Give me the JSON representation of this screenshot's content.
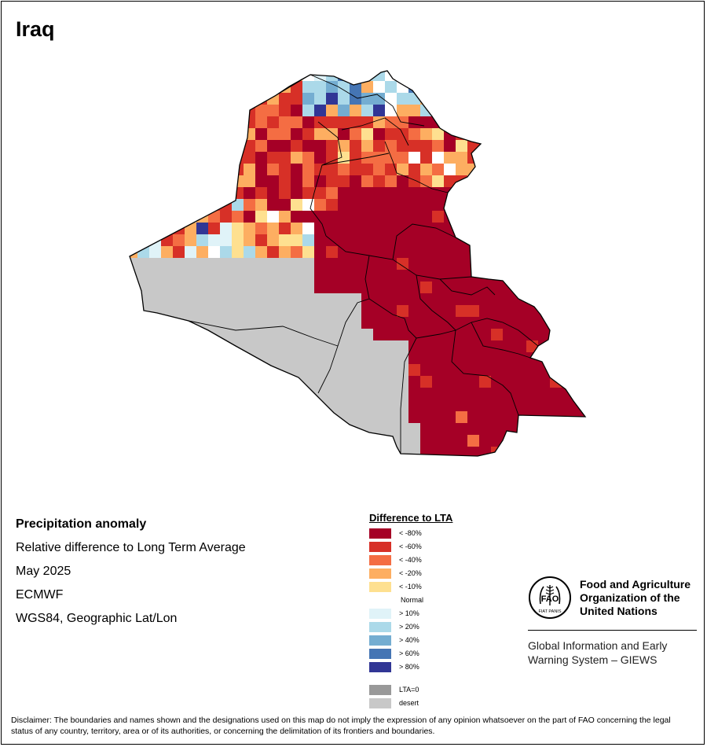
{
  "title": "Iraq",
  "metadata": {
    "heading": "Precipitation anomaly",
    "description": "Relative difference to Long Term Average",
    "period": "May 2025",
    "source": "ECMWF",
    "projection": "WGS84, Geographic Lat/Lon"
  },
  "legend": {
    "title": "Difference to LTA",
    "items": [
      {
        "label": "< -80%",
        "color": "#a50026"
      },
      {
        "label": "< -60%",
        "color": "#d73027"
      },
      {
        "label": "< -40%",
        "color": "#f46d43"
      },
      {
        "label": "< -20%",
        "color": "#fdae61"
      },
      {
        "label": "< -10%",
        "color": "#fee090"
      },
      {
        "label": "Normal",
        "color": "#ffffff"
      },
      {
        "label": "> 10%",
        "color": "#e0f3f8"
      },
      {
        "label": "> 20%",
        "color": "#abd9e9"
      },
      {
        "label": "> 40%",
        "color": "#74add1"
      },
      {
        "label": "> 60%",
        "color": "#4575b4"
      },
      {
        "label": "> 80%",
        "color": "#313695"
      }
    ],
    "extra": [
      {
        "label": "LTA=0",
        "color": "#999999"
      },
      {
        "label": "desert",
        "color": "#c8c8c8"
      }
    ]
  },
  "organization": {
    "name_line1": "Food and Agriculture",
    "name_line2": "Organization of the",
    "name_line3": "United Nations",
    "logo_text": "FAO",
    "logo_motto": "FIAT PANIS",
    "system_line1": "Global Information and Early",
    "system_line2": "Warning System – GIEWS"
  },
  "disclaimer": "Disclaimer: The boundaries and names shown and the designations used on this map do not imply the expression of any opinion whatsoever on the part of FAO concerning the legal status of any country, territory, area or of its authorities, or concerning the delimitation of its frontiers and boundaries."
}
